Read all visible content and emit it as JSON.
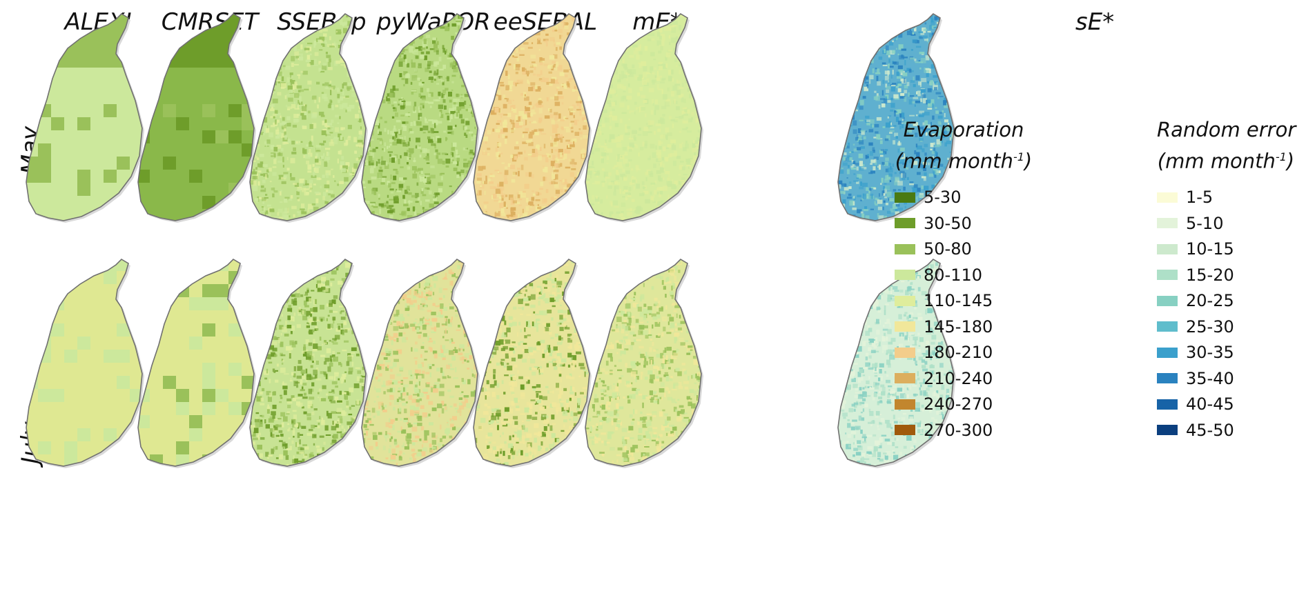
{
  "columns": [
    "ALEXI",
    "CMRSET",
    "SSEBop",
    "pyWaPOR",
    "eeSEBAL",
    "mE*",
    "sE*"
  ],
  "rows": [
    "May",
    "July"
  ],
  "legend_evaporation": {
    "title": "Evaporation",
    "unit_prefix": "(mm month",
    "unit_sup": "-1",
    "unit_suffix": ")",
    "classes": [
      {
        "label": "5-30",
        "color": "#4a7a12"
      },
      {
        "label": "30-50",
        "color": "#6e9d2a"
      },
      {
        "label": "50-80",
        "color": "#9ac15a"
      },
      {
        "label": "80-110",
        "color": "#cce89c"
      },
      {
        "label": "110-145",
        "color": "#dfed9c"
      },
      {
        "label": "145-180",
        "color": "#f1e79a"
      },
      {
        "label": "180-210",
        "color": "#f3cd8b"
      },
      {
        "label": "210-240",
        "color": "#dcae5e"
      },
      {
        "label": "240-270",
        "color": "#c2862e"
      },
      {
        "label": "270-300",
        "color": "#a05a0c"
      }
    ]
  },
  "legend_error": {
    "title": "Random error",
    "unit_prefix": "(mm month",
    "unit_sup": "-1",
    "unit_suffix": ")",
    "classes": [
      {
        "label": "1-5",
        "color": "#fbfbd6"
      },
      {
        "label": "5-10",
        "color": "#e3f3da"
      },
      {
        "label": "10-15",
        "color": "#cde9cd"
      },
      {
        "label": "15-20",
        "color": "#aee0c8"
      },
      {
        "label": "20-25",
        "color": "#87d0c2"
      },
      {
        "label": "25-30",
        "color": "#5fbdcc"
      },
      {
        "label": "30-35",
        "color": "#3ba0cc"
      },
      {
        "label": "35-40",
        "color": "#2a82bf"
      },
      {
        "label": "40-45",
        "color": "#1763a7"
      },
      {
        "label": "45-50",
        "color": "#0b3f7f"
      }
    ]
  },
  "maps": [
    {
      "model": "ALEXI",
      "month": "May",
      "base_color": "#cce89c",
      "palette": [
        "#9ac15a",
        "#cce89c"
      ],
      "pattern": "blocks"
    },
    {
      "model": "CMRSET",
      "month": "May",
      "base_color": "#8ab84a",
      "palette": [
        "#6e9d2a",
        "#9ac15a"
      ],
      "pattern": "blocks"
    },
    {
      "model": "SSEBop",
      "month": "May",
      "base_color": "#c4e290",
      "palette": [
        "#9ac15a",
        "#cce89c",
        "#dfed9c"
      ],
      "pattern": "speckle"
    },
    {
      "model": "pyWaPOR",
      "month": "May",
      "base_color": "#b9da82",
      "palette": [
        "#6e9d2a",
        "#9ac15a",
        "#cce89c"
      ],
      "pattern": "speckle"
    },
    {
      "model": "eeSEBAL",
      "month": "May",
      "base_color": "#f1d894",
      "palette": [
        "#f3cd8b",
        "#dcae5e",
        "#f1e79a"
      ],
      "pattern": "speckle"
    },
    {
      "model": "mE*",
      "month": "May",
      "base_color": "#d6ec9e",
      "palette": [
        "#cce89c",
        "#dfed9c"
      ],
      "pattern": "speckle"
    },
    {
      "model": "sE*",
      "month": "May",
      "base_color": "#5fb0cf",
      "palette": [
        "#2a82bf",
        "#87d0c2",
        "#3ba0cc",
        "#cde9cd"
      ],
      "pattern": "speckle"
    },
    {
      "model": "ALEXI",
      "month": "July",
      "base_color": "#dfe892",
      "palette": [
        "#cce89c"
      ],
      "pattern": "blocks"
    },
    {
      "model": "CMRSET",
      "month": "July",
      "base_color": "#dfe892",
      "palette": [
        "#cce89c",
        "#9ac15a"
      ],
      "pattern": "blocks"
    },
    {
      "model": "SSEBop",
      "month": "July",
      "base_color": "#c8e394",
      "palette": [
        "#6e9d2a",
        "#9ac15a",
        "#dfed9c"
      ],
      "pattern": "speckle"
    },
    {
      "model": "pyWaPOR",
      "month": "July",
      "base_color": "#e1e39a",
      "palette": [
        "#f3cd8b",
        "#9ac15a",
        "#cce89c"
      ],
      "pattern": "speckle"
    },
    {
      "model": "eeSEBAL",
      "month": "July",
      "base_color": "#e7e59b",
      "palette": [
        "#cce89c",
        "#f1e79a",
        "#6e9d2a"
      ],
      "pattern": "speckle"
    },
    {
      "model": "mE*",
      "month": "July",
      "base_color": "#dfe79b",
      "palette": [
        "#cce89c",
        "#f1e79a",
        "#9ac15a"
      ],
      "pattern": "speckle"
    },
    {
      "model": "sE*",
      "month": "July",
      "base_color": "#d6efd8",
      "palette": [
        "#aee0c8",
        "#e3f3da",
        "#87d0c2"
      ],
      "pattern": "speckle"
    }
  ]
}
